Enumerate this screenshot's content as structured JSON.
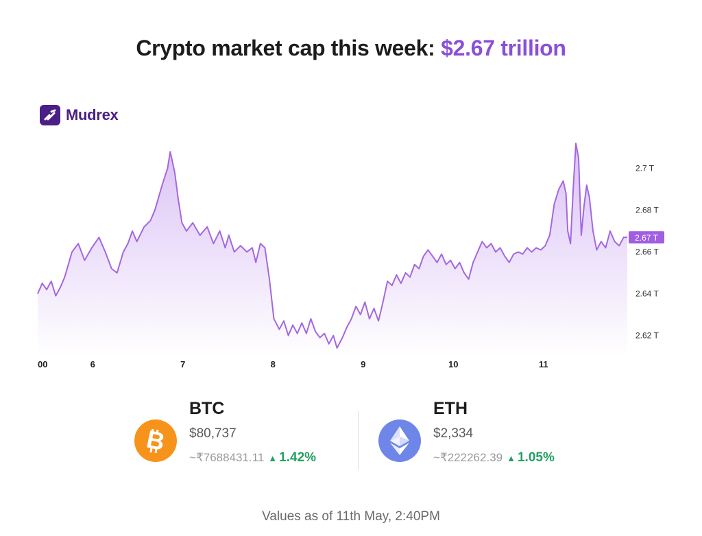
{
  "headline": {
    "prefix": "Crypto market cap this week:",
    "value": "$2.67 trillion"
  },
  "brand": {
    "name": "Mudrex",
    "icon": "mudrex-logo-icon"
  },
  "chart_data": {
    "type": "area",
    "series": [
      {
        "values": [
          {
            "x": 0.0,
            "y": 2.64
          },
          {
            "x": 0.05,
            "y": 2.645
          },
          {
            "x": 0.1,
            "y": 2.642
          },
          {
            "x": 0.15,
            "y": 2.646
          },
          {
            "x": 0.2,
            "y": 2.639
          },
          {
            "x": 0.25,
            "y": 2.643
          },
          {
            "x": 0.3,
            "y": 2.648
          },
          {
            "x": 0.38,
            "y": 2.66
          },
          {
            "x": 0.45,
            "y": 2.664
          },
          {
            "x": 0.52,
            "y": 2.656
          },
          {
            "x": 0.6,
            "y": 2.662
          },
          {
            "x": 0.68,
            "y": 2.667
          },
          {
            "x": 0.75,
            "y": 2.66
          },
          {
            "x": 0.82,
            "y": 2.652
          },
          {
            "x": 0.88,
            "y": 2.65
          },
          {
            "x": 0.95,
            "y": 2.66
          },
          {
            "x": 1.0,
            "y": 2.664
          },
          {
            "x": 1.05,
            "y": 2.67
          },
          {
            "x": 1.1,
            "y": 2.665
          },
          {
            "x": 1.18,
            "y": 2.672
          },
          {
            "x": 1.25,
            "y": 2.675
          },
          {
            "x": 1.3,
            "y": 2.68
          },
          {
            "x": 1.38,
            "y": 2.692
          },
          {
            "x": 1.44,
            "y": 2.7
          },
          {
            "x": 1.47,
            "y": 2.708
          },
          {
            "x": 1.52,
            "y": 2.698
          },
          {
            "x": 1.56,
            "y": 2.685
          },
          {
            "x": 1.6,
            "y": 2.674
          },
          {
            "x": 1.65,
            "y": 2.67
          },
          {
            "x": 1.72,
            "y": 2.674
          },
          {
            "x": 1.8,
            "y": 2.668
          },
          {
            "x": 1.88,
            "y": 2.672
          },
          {
            "x": 1.95,
            "y": 2.664
          },
          {
            "x": 2.02,
            "y": 2.67
          },
          {
            "x": 2.08,
            "y": 2.662
          },
          {
            "x": 2.12,
            "y": 2.668
          },
          {
            "x": 2.18,
            "y": 2.66
          },
          {
            "x": 2.25,
            "y": 2.663
          },
          {
            "x": 2.32,
            "y": 2.66
          },
          {
            "x": 2.38,
            "y": 2.662
          },
          {
            "x": 2.42,
            "y": 2.655
          },
          {
            "x": 2.47,
            "y": 2.664
          },
          {
            "x": 2.52,
            "y": 2.662
          },
          {
            "x": 2.57,
            "y": 2.647
          },
          {
            "x": 2.62,
            "y": 2.628
          },
          {
            "x": 2.68,
            "y": 2.623
          },
          {
            "x": 2.73,
            "y": 2.627
          },
          {
            "x": 2.78,
            "y": 2.62
          },
          {
            "x": 2.83,
            "y": 2.625
          },
          {
            "x": 2.88,
            "y": 2.621
          },
          {
            "x": 2.93,
            "y": 2.626
          },
          {
            "x": 2.98,
            "y": 2.621
          },
          {
            "x": 3.03,
            "y": 2.628
          },
          {
            "x": 3.08,
            "y": 2.622
          },
          {
            "x": 3.13,
            "y": 2.619
          },
          {
            "x": 3.18,
            "y": 2.621
          },
          {
            "x": 3.23,
            "y": 2.616
          },
          {
            "x": 3.28,
            "y": 2.62
          },
          {
            "x": 3.32,
            "y": 2.614
          },
          {
            "x": 3.38,
            "y": 2.619
          },
          {
            "x": 3.43,
            "y": 2.624
          },
          {
            "x": 3.48,
            "y": 2.628
          },
          {
            "x": 3.53,
            "y": 2.634
          },
          {
            "x": 3.58,
            "y": 2.63
          },
          {
            "x": 3.63,
            "y": 2.636
          },
          {
            "x": 3.68,
            "y": 2.628
          },
          {
            "x": 3.73,
            "y": 2.633
          },
          {
            "x": 3.78,
            "y": 2.627
          },
          {
            "x": 3.83,
            "y": 2.636
          },
          {
            "x": 3.88,
            "y": 2.646
          },
          {
            "x": 3.93,
            "y": 2.644
          },
          {
            "x": 3.98,
            "y": 2.649
          },
          {
            "x": 4.03,
            "y": 2.645
          },
          {
            "x": 4.08,
            "y": 2.65
          },
          {
            "x": 4.13,
            "y": 2.648
          },
          {
            "x": 4.18,
            "y": 2.654
          },
          {
            "x": 4.23,
            "y": 2.652
          },
          {
            "x": 4.28,
            "y": 2.658
          },
          {
            "x": 4.33,
            "y": 2.661
          },
          {
            "x": 4.38,
            "y": 2.658
          },
          {
            "x": 4.43,
            "y": 2.655
          },
          {
            "x": 4.48,
            "y": 2.659
          },
          {
            "x": 4.53,
            "y": 2.654
          },
          {
            "x": 4.58,
            "y": 2.656
          },
          {
            "x": 4.63,
            "y": 2.652
          },
          {
            "x": 4.68,
            "y": 2.655
          },
          {
            "x": 4.73,
            "y": 2.65
          },
          {
            "x": 4.78,
            "y": 2.647
          },
          {
            "x": 4.83,
            "y": 2.655
          },
          {
            "x": 4.88,
            "y": 2.66
          },
          {
            "x": 4.93,
            "y": 2.665
          },
          {
            "x": 4.98,
            "y": 2.662
          },
          {
            "x": 5.03,
            "y": 2.664
          },
          {
            "x": 5.08,
            "y": 2.66
          },
          {
            "x": 5.13,
            "y": 2.662
          },
          {
            "x": 5.18,
            "y": 2.658
          },
          {
            "x": 5.23,
            "y": 2.655
          },
          {
            "x": 5.28,
            "y": 2.659
          },
          {
            "x": 5.33,
            "y": 2.66
          },
          {
            "x": 5.38,
            "y": 2.659
          },
          {
            "x": 5.43,
            "y": 2.662
          },
          {
            "x": 5.48,
            "y": 2.66
          },
          {
            "x": 5.53,
            "y": 2.662
          },
          {
            "x": 5.58,
            "y": 2.661
          },
          {
            "x": 5.63,
            "y": 2.663
          },
          {
            "x": 5.68,
            "y": 2.668
          },
          {
            "x": 5.73,
            "y": 2.683
          },
          {
            "x": 5.78,
            "y": 2.69
          },
          {
            "x": 5.83,
            "y": 2.694
          },
          {
            "x": 5.86,
            "y": 2.688
          },
          {
            "x": 5.88,
            "y": 2.67
          },
          {
            "x": 5.91,
            "y": 2.664
          },
          {
            "x": 5.94,
            "y": 2.69
          },
          {
            "x": 5.97,
            "y": 2.712
          },
          {
            "x": 6.0,
            "y": 2.705
          },
          {
            "x": 6.03,
            "y": 2.668
          },
          {
            "x": 6.06,
            "y": 2.682
          },
          {
            "x": 6.09,
            "y": 2.692
          },
          {
            "x": 6.12,
            "y": 2.686
          },
          {
            "x": 6.16,
            "y": 2.67
          },
          {
            "x": 6.2,
            "y": 2.661
          },
          {
            "x": 6.25,
            "y": 2.665
          },
          {
            "x": 6.3,
            "y": 2.662
          },
          {
            "x": 6.35,
            "y": 2.67
          },
          {
            "x": 6.4,
            "y": 2.665
          },
          {
            "x": 6.45,
            "y": 2.663
          },
          {
            "x": 6.5,
            "y": 2.667
          },
          {
            "x": 6.54,
            "y": 2.667
          }
        ]
      }
    ],
    "ylim": [
      2.61,
      2.715
    ],
    "xlim": [
      0,
      6.54
    ],
    "x_ticks": [
      {
        "x": 0.0,
        "label": "00"
      },
      {
        "x": 0.61,
        "label": "6"
      },
      {
        "x": 1.61,
        "label": "7"
      },
      {
        "x": 2.61,
        "label": "8"
      },
      {
        "x": 3.61,
        "label": "9"
      },
      {
        "x": 4.61,
        "label": "10"
      },
      {
        "x": 5.61,
        "label": "11"
      }
    ],
    "y_ticks": [
      {
        "y": 2.62,
        "label": "2.62 T"
      },
      {
        "y": 2.64,
        "label": "2.64 T"
      },
      {
        "y": 2.66,
        "label": "2.66 T"
      },
      {
        "y": 2.68,
        "label": "2.68 T"
      },
      {
        "y": 2.7,
        "label": "2.7 T"
      }
    ],
    "current": {
      "y": 2.667,
      "label": "2.67 T"
    },
    "grid": false,
    "colors": {
      "line": "#a467e0",
      "fill_top": "#d9bff5",
      "fill_bottom": "#ffffff",
      "badge": "#a05ee0"
    }
  },
  "coins": [
    {
      "symbol": "BTC",
      "price": "$80,737",
      "inr": "~₹7688431.11",
      "change": "1.42%",
      "icon": "bitcoin-icon"
    },
    {
      "symbol": "ETH",
      "price": "$2,334",
      "inr": "~₹222262.39",
      "change": "1.05%",
      "icon": "ethereum-icon"
    }
  ],
  "footer": "Values as of 11th May, 2:40PM"
}
